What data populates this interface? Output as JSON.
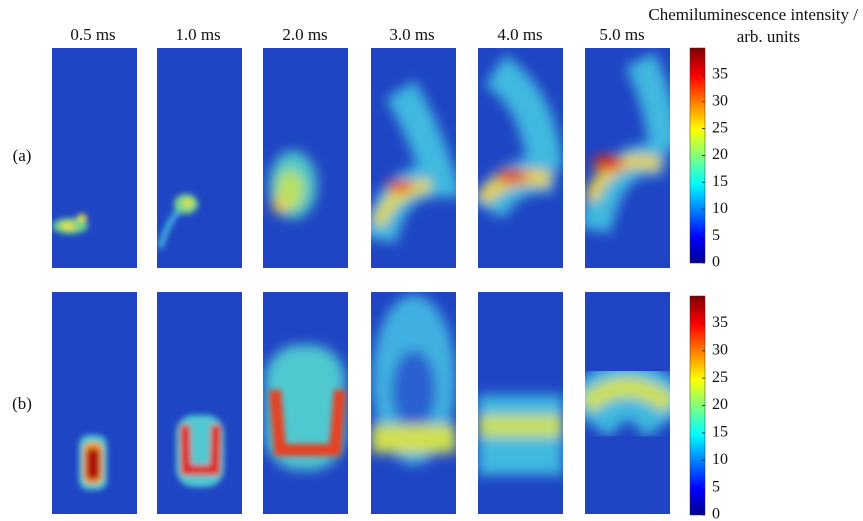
{
  "column_labels": [
    "0.5 ms",
    "1.0 ms",
    "2.0 ms",
    "3.0 ms",
    "4.0 ms",
    "5.0 ms"
  ],
  "row_labels": [
    "(a)",
    "(b)"
  ],
  "colorbar": {
    "title": "Chemiluminescence intensity /",
    "units": "arb. units",
    "lim": [
      0,
      40
    ],
    "ticks": [
      0,
      5,
      10,
      15,
      20,
      25,
      30,
      35
    ]
  }
}
